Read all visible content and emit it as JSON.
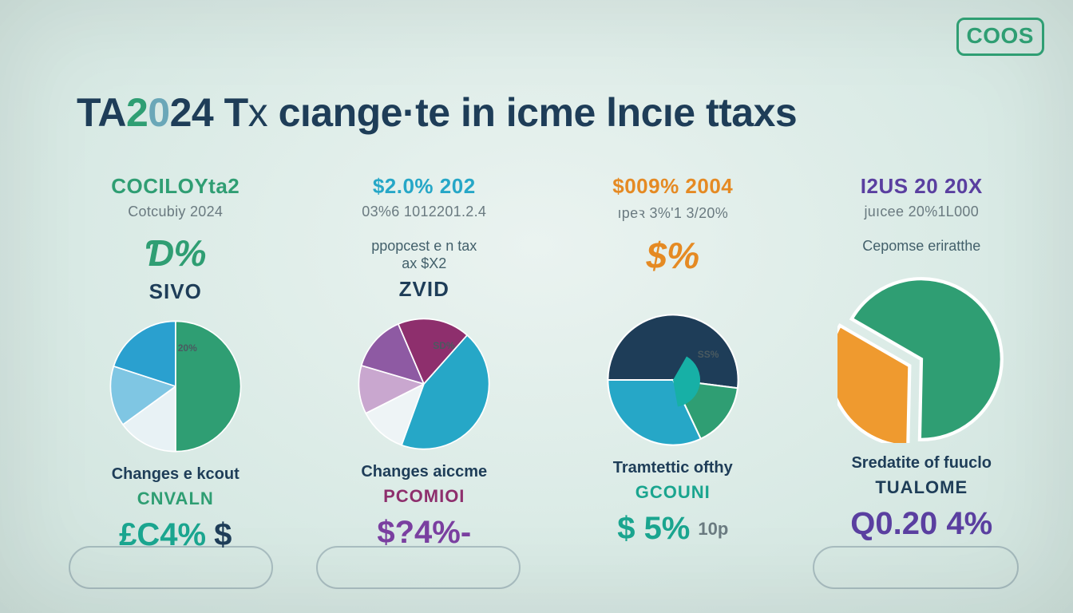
{
  "background_color": "#dfeee9",
  "logo": {
    "text": "COOS",
    "color": "#2f9e73",
    "border_color": "#2f9e73",
    "fontsize": 28
  },
  "title": {
    "fontsize": 50,
    "segments": [
      {
        "text": "TA",
        "color": "#1e3d58",
        "weight": 800
      },
      {
        "text": "2",
        "color": "#2f9e73",
        "weight": 800
      },
      {
        "text": "0",
        "color": "#6aa7b8",
        "weight": 800
      },
      {
        "text": "24",
        "color": "#1e3d58",
        "weight": 800
      },
      {
        "text": " ",
        "color": "#1e3d58",
        "weight": 800
      },
      {
        "text": "T",
        "color": "#1e3d58",
        "weight": 800
      },
      {
        "text": "x ",
        "color": "#1e3d58",
        "weight": 300
      },
      {
        "text": "cıange·te in icme lncıe ttaxs",
        "color": "#1e3d58",
        "weight": 700
      }
    ]
  },
  "columns": [
    {
      "heading": "COCILOYta2",
      "heading_color": "#2f9e73",
      "subheading": "Cotcubiy 2024",
      "subheading_color": "#6a7a80",
      "big_stat": "Ɗ%",
      "big_stat_color": "#2f9e73",
      "mid_label": "SIVO",
      "mid_label_color": "#1e3d58",
      "slice_label": "20%",
      "caption": "Changes e kcout",
      "caption_color": "#1e3d58",
      "tag": "CNVALN",
      "tag_color": "#2f9e73",
      "bottom_left": "£C4%",
      "bottom_left_color": "#1aa58f",
      "bottom_right": "$",
      "bottom_right_color": "#1e3d58",
      "pie": {
        "type": "pie",
        "start_angle": 180,
        "slices": [
          {
            "value": 15,
            "color": "#e8f2f5"
          },
          {
            "value": 15,
            "color": "#7fc6e3"
          },
          {
            "value": 20,
            "color": "#2aa0cf"
          },
          {
            "value": 50,
            "color": "#2f9e73"
          }
        ],
        "stroke": "#ffffff",
        "stroke_width": 1.0
      }
    },
    {
      "heading": "$2.0% 202",
      "heading_color": "#26a7c7",
      "subheading": "03%6 1012201.2.4",
      "subheading_color": "#6a7a80",
      "subtext_lines": [
        "ppopcest e n tax",
        "ax $X2"
      ],
      "subtext_color": "#43606b",
      "mid_label": "ZVID",
      "mid_label_color": "#1e3d58",
      "slice_label": "SD%",
      "caption": "Changes aiccme",
      "caption_color": "#1e3d58",
      "tag": "PCOMIOI",
      "tag_color": "#8e2f6d",
      "bottom_value": "$?4%-",
      "bottom_color": "#7a3fa0",
      "pie": {
        "type": "pie",
        "start_angle": 200,
        "slices": [
          {
            "value": 12,
            "color": "#eef4f6"
          },
          {
            "value": 12,
            "color": "#c9a7cf"
          },
          {
            "value": 14,
            "color": "#8e5aa3"
          },
          {
            "value": 18,
            "color": "#8e2f6d"
          },
          {
            "value": 44,
            "color": "#26a7c7"
          }
        ],
        "stroke": "#ffffff",
        "stroke_width": 1.0
      }
    },
    {
      "heading": "$009% 2004",
      "heading_color": "#e58a23",
      "subheading": "ıpeꝛ 3%'1 3/20%",
      "subheading_color": "#6a7a80",
      "big_stat": "$%",
      "big_stat_color": "#e58a23",
      "slice_label": "SS%",
      "caption": "Tramtettic ofthy",
      "caption_color": "#1e3d58",
      "tag": "GCOUNI",
      "tag_color": "#1aa58f",
      "bottom_left": "$ 5%",
      "bottom_left_color": "#1aa58f",
      "bottom_right": "10p",
      "bottom_right_color": "#6a7a80",
      "pie": {
        "type": "pie",
        "start_angle": 270,
        "slices": [
          {
            "value": 52,
            "color": "#1e3d58"
          },
          {
            "value": 16,
            "color": "#2f9e73"
          },
          {
            "value": 32,
            "color": "#26a7c7"
          }
        ],
        "inner_accent": {
          "color": "#17b0a6",
          "angle": 30,
          "radius": 20
        },
        "stroke": "#ffffff",
        "stroke_width": 1.2
      }
    },
    {
      "heading": "I2US 20 20X",
      "heading_color": "#5a3fa0",
      "subheading": "juıcee 20%1L000",
      "subheading_color": "#6a7a80",
      "subtext": "Cepomse eriratthe",
      "subtext_color": "#43606b",
      "caption": "Sredatite of fuuclo",
      "caption_color": "#1e3d58",
      "tag": "TUALOME",
      "tag_color": "#1e3d58",
      "bottom_value": "Q0.20 4%",
      "bottom_color": "#5a3fa0",
      "pie": {
        "type": "pie",
        "start_angle": 300,
        "explode_slice": 1,
        "explode_distance": 8,
        "slices": [
          {
            "value": 67,
            "color": "#2f9e73"
          },
          {
            "value": 33,
            "color": "#ef9a2f"
          }
        ],
        "stroke": "#ffffff",
        "stroke_width": 2.0
      }
    }
  ]
}
